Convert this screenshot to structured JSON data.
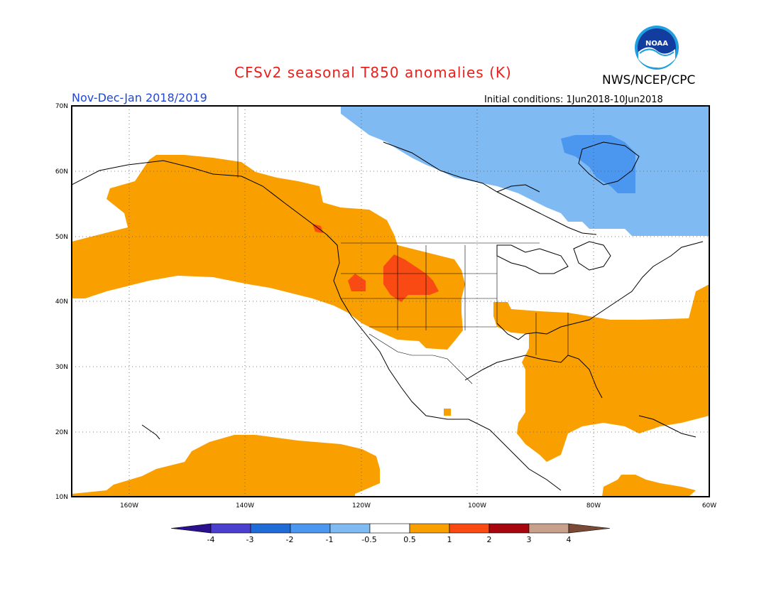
{
  "title": "CFSv2 seasonal T850 anomalies (K)",
  "title_color": "#e8201c",
  "org": "NWS/NCEP/CPC",
  "logo_text": "NOAA",
  "period": "Nov-Dec-Jan 2018/2019",
  "period_color": "#2046d8",
  "init_conditions": "Initial conditions: 1Jun2018-10Jun2018",
  "lat_labels": [
    "70N",
    "60N",
    "50N",
    "40N",
    "30N",
    "20N",
    "10N"
  ],
  "lon_labels": [
    "160W",
    "140W",
    "120W",
    "100W",
    "80W",
    "60W"
  ],
  "colorbar": {
    "labels": [
      "-4",
      "-3",
      "-2",
      "-1",
      "-0.5",
      "0.5",
      "1",
      "2",
      "3",
      "4"
    ],
    "colors": [
      "#2a0f8f",
      "#4b3fd0",
      "#1f6cd9",
      "#4b97f0",
      "#80baf3",
      "#ffffff",
      "#f9a000",
      "#f84a12",
      "#a8060e",
      "#c9a08c",
      "#7b4a36"
    ]
  },
  "anomaly_colors": {
    "weak_warm": "#f9a000",
    "moderate_warm": "#f84a12",
    "weak_cold": "#80baf3",
    "moderate_cold": "#4b97f0"
  }
}
